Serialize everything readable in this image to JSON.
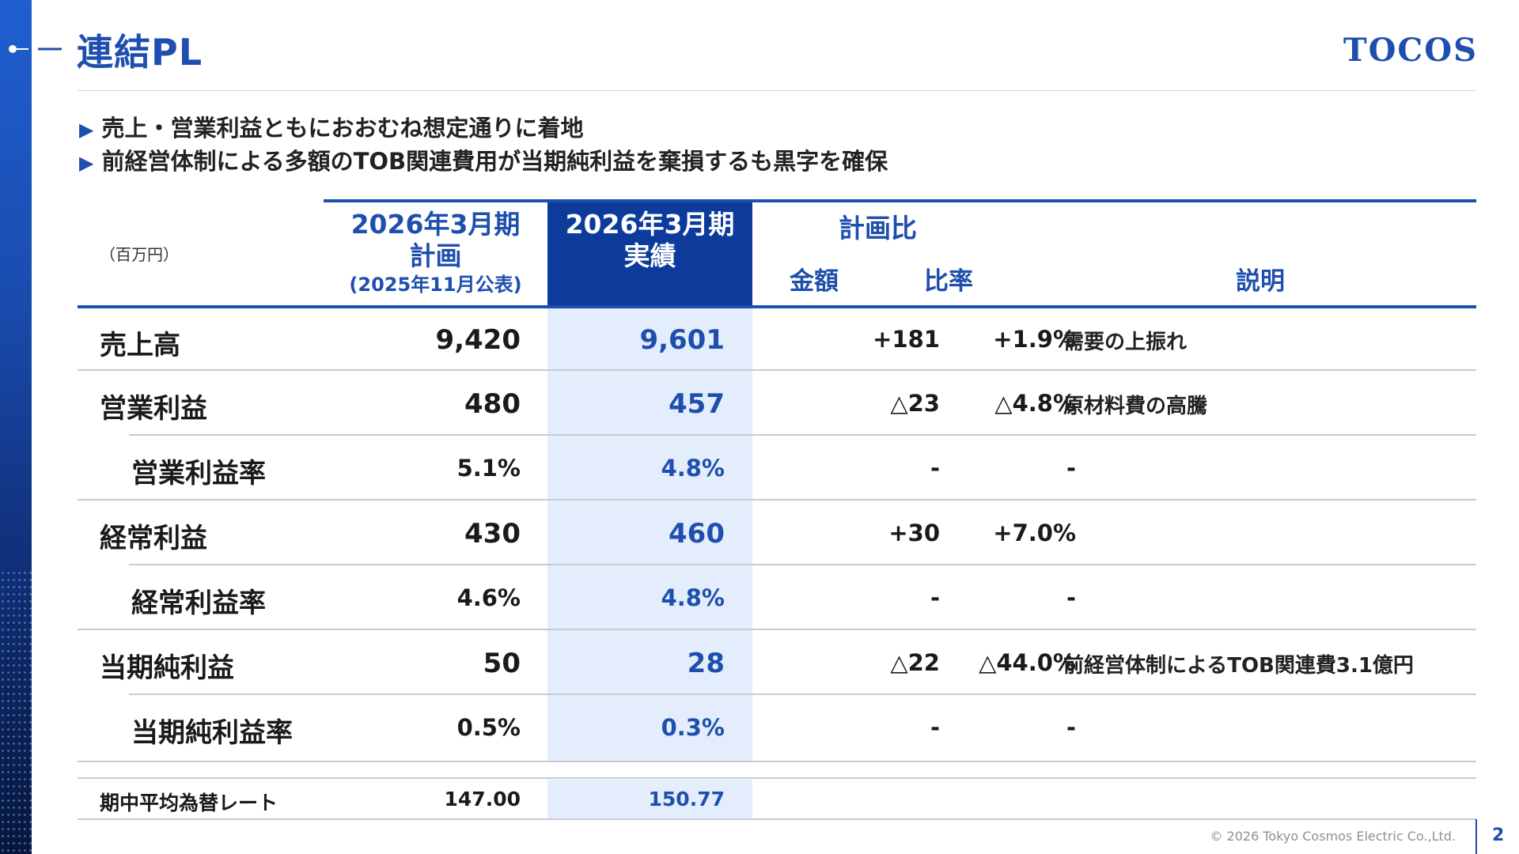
{
  "title": "連結PL",
  "logo": "TOCOS",
  "bullets": [
    "売上・営業利益ともにおおむね想定通りに着地",
    "前経営体制による多額のTOB関連費用が当期純利益を棄損するも黒字を確保"
  ],
  "bullet_marker": "▶",
  "table": {
    "unit": "（百万円）",
    "plan_header": {
      "line1": "2026年3月期",
      "line2": "計画",
      "line3": "(2025年11月公表)"
    },
    "actual_header": {
      "line1": "2026年3月期",
      "line2": "実績"
    },
    "compare_header": "計画比",
    "amount_header": "金額",
    "ratio_header": "比率",
    "desc_header": "説明",
    "rows": [
      {
        "label": "売上高",
        "plan": "9,420",
        "actual": "9,601",
        "amount": "+181",
        "ratio": "+1.9%",
        "desc": "需要の上振れ"
      },
      {
        "label": "営業利益",
        "plan": "480",
        "actual": "457",
        "amount": "△23",
        "ratio": "△4.8%",
        "desc": "原材料費の高騰"
      },
      {
        "label": "営業利益率",
        "plan": "5.1%",
        "actual": "4.8%",
        "amount": "-",
        "ratio": "-",
        "desc": ""
      },
      {
        "label": "経常利益",
        "plan": "430",
        "actual": "460",
        "amount": "+30",
        "ratio": "+7.0%",
        "desc": ""
      },
      {
        "label": "経常利益率",
        "plan": "4.6%",
        "actual": "4.8%",
        "amount": "-",
        "ratio": "-",
        "desc": ""
      },
      {
        "label": "当期純利益",
        "plan": "50",
        "actual": "28",
        "amount": "△22",
        "ratio": "△44.0%",
        "desc": "前経営体制によるTOB関連費3.1億円"
      },
      {
        "label": "当期純利益率",
        "plan": "0.5%",
        "actual": "0.3%",
        "amount": "-",
        "ratio": "-",
        "desc": ""
      }
    ],
    "fx_row": {
      "label": "期中平均為替レート",
      "plan": "147.00",
      "actual": "150.77"
    }
  },
  "footer": {
    "copyright": "© 2026 Tokyo Cosmos Electric Co.,Ltd.",
    "page": "2"
  },
  "colors": {
    "brand": "#1e4fae",
    "header_fill": "#0d3b9c",
    "actual_col": "#e3edfb"
  }
}
